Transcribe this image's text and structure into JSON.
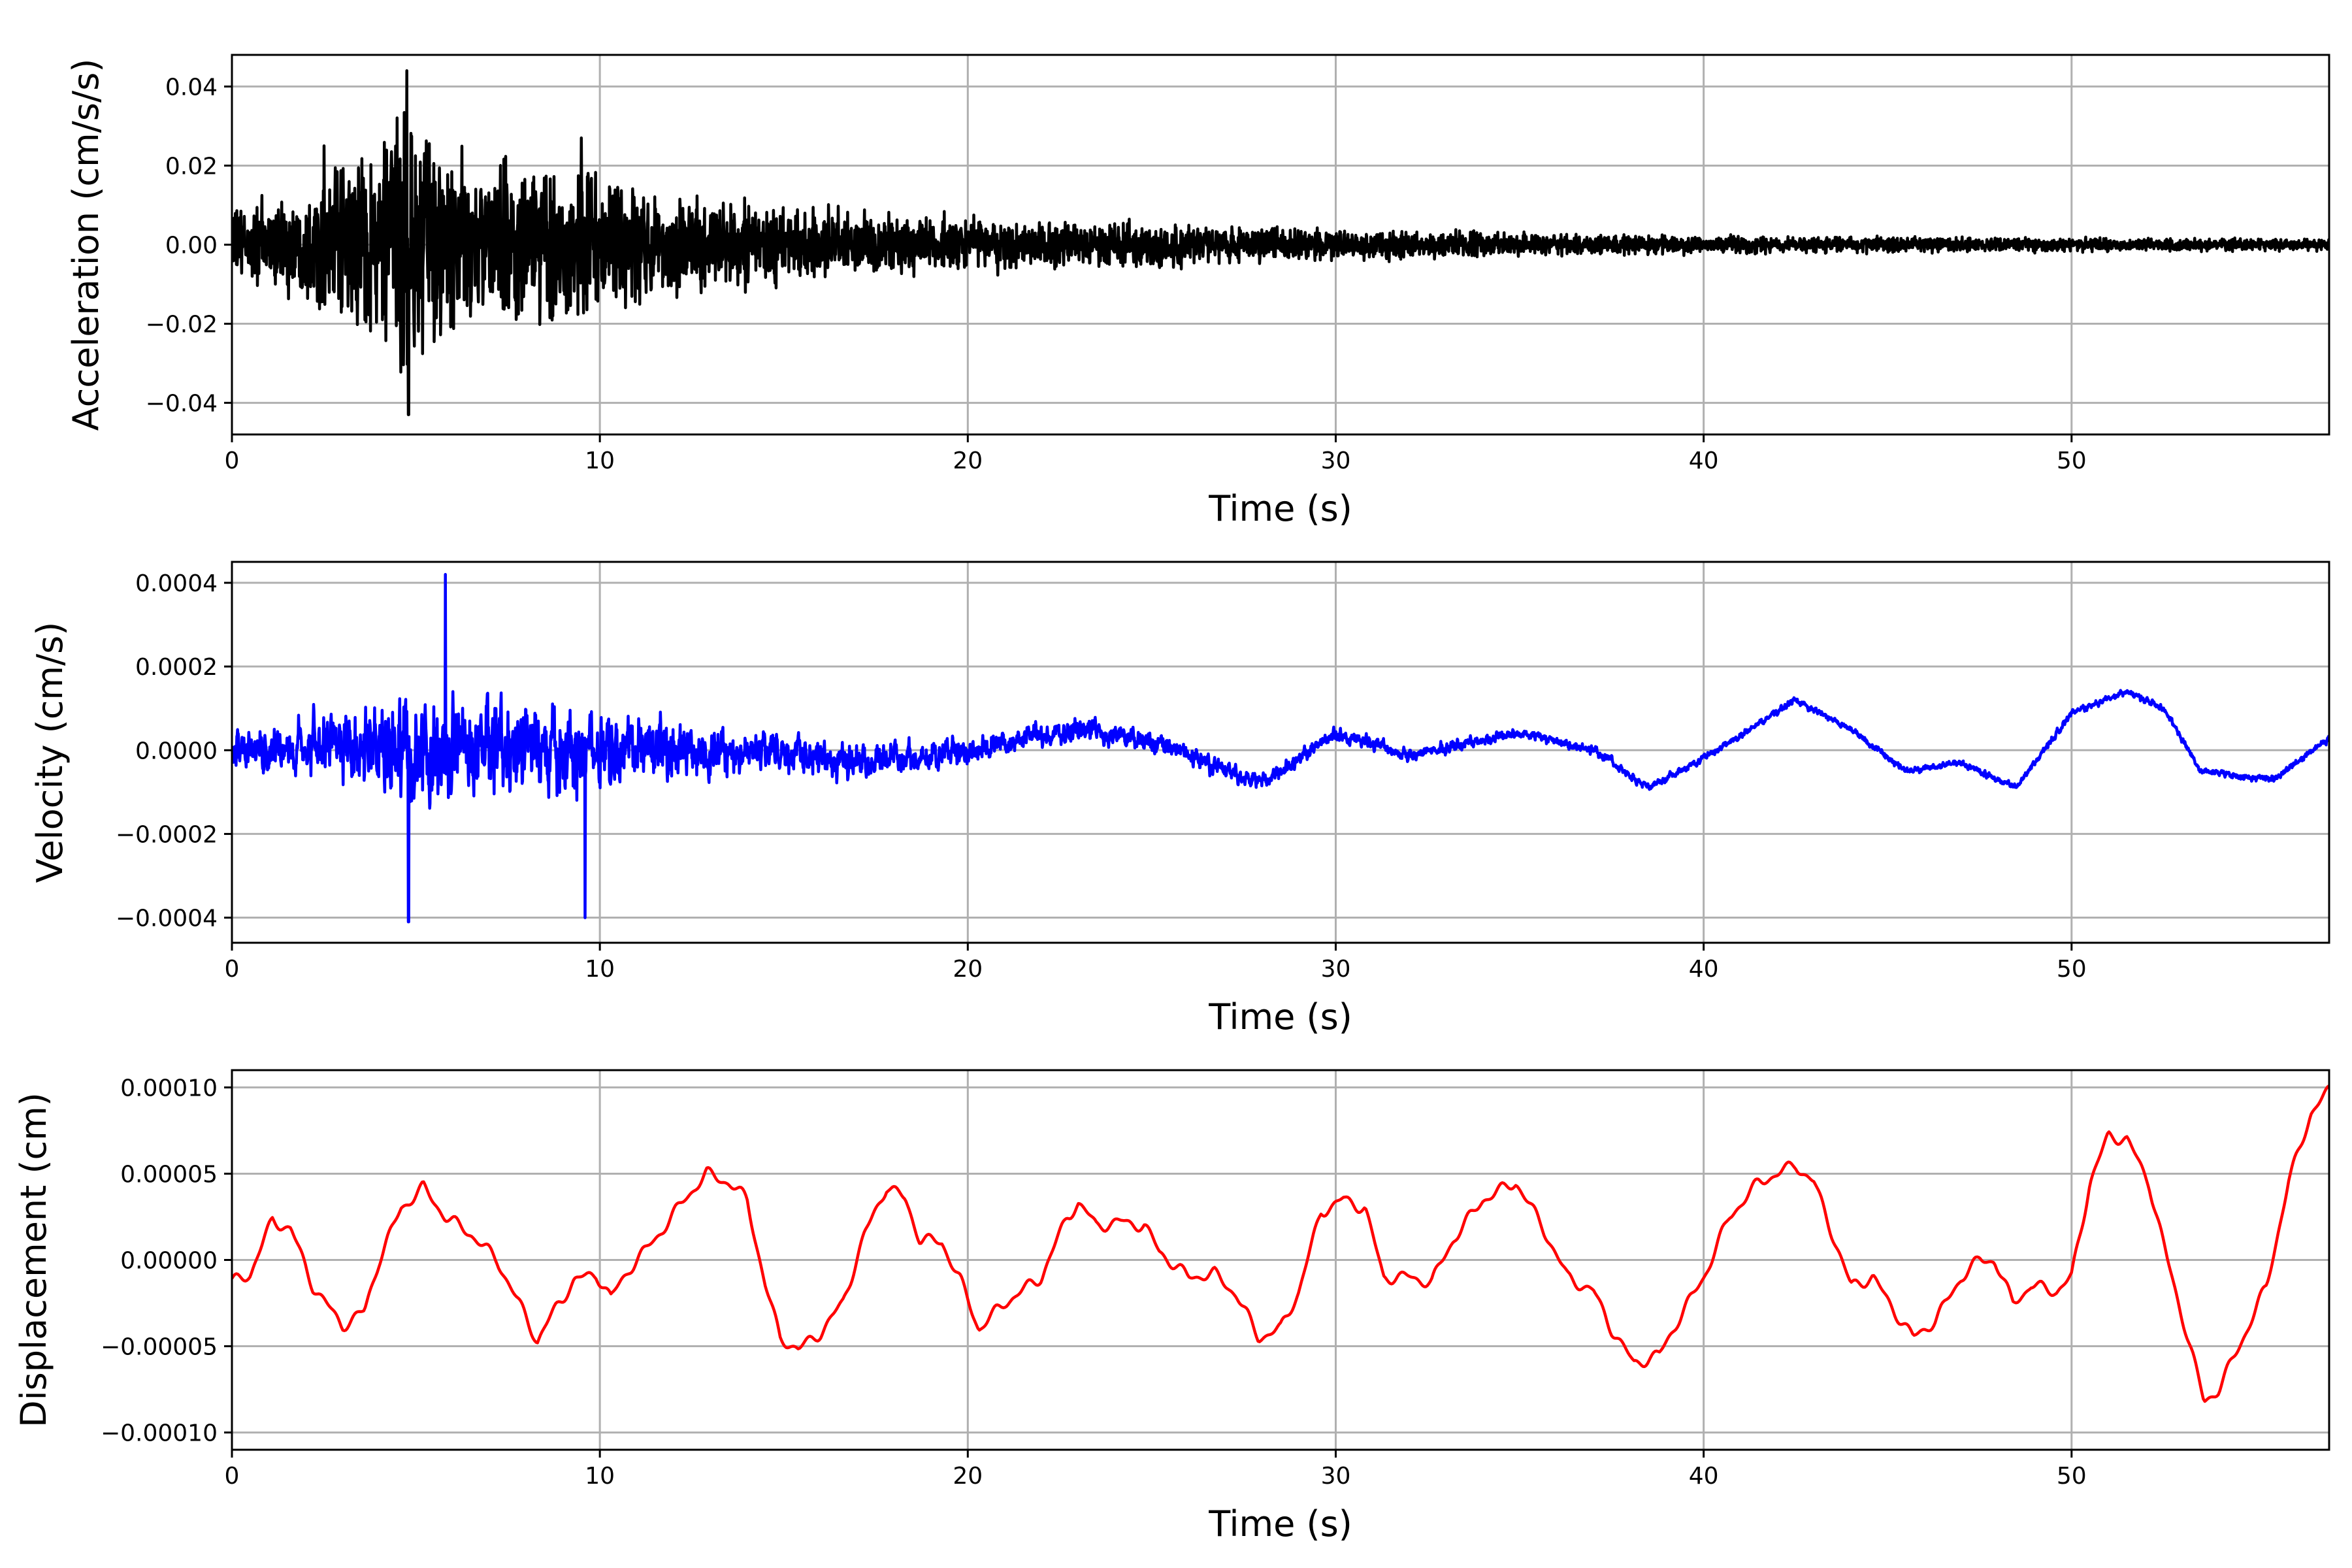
{
  "chart_data": [
    {
      "type": "line",
      "id": "acceleration",
      "xlabel": "Time (s)",
      "ylabel": "Acceleration (cm/s/s)",
      "xlim": [
        0,
        57
      ],
      "ylim": [
        -0.048,
        0.048
      ],
      "xticks": [
        0,
        10,
        20,
        30,
        40,
        50
      ],
      "xtick_labels": [
        "0",
        "10",
        "20",
        "30",
        "40",
        "50"
      ],
      "yticks": [
        -0.04,
        -0.02,
        0.0,
        0.02,
        0.04
      ],
      "ytick_labels": [
        "−0.04",
        "−0.02",
        "0.00",
        "0.02",
        "0.04"
      ],
      "grid": true,
      "series": [
        {
          "color": "#000000",
          "style": "noise",
          "envelope": [
            [
              0,
              0.012
            ],
            [
              2,
              0.018
            ],
            [
              3.5,
              0.03
            ],
            [
              4.7,
              0.044
            ],
            [
              6,
              0.032
            ],
            [
              8,
              0.025
            ],
            [
              9.5,
              0.028
            ],
            [
              11,
              0.02
            ],
            [
              13,
              0.015
            ],
            [
              16,
              0.012
            ],
            [
              20,
              0.009
            ],
            [
              25,
              0.007
            ],
            [
              30,
              0.005
            ],
            [
              40,
              0.003
            ],
            [
              50,
              0.0022
            ],
            [
              57,
              0.002
            ]
          ],
          "peaks": [
            [
              4.75,
              0.044
            ],
            [
              4.8,
              -0.043
            ],
            [
              9.5,
              0.027
            ],
            [
              2.5,
              0.025
            ]
          ]
        }
      ]
    },
    {
      "type": "line",
      "id": "velocity",
      "xlabel": "Time (s)",
      "ylabel": "Velocity (cm/s)",
      "xlim": [
        0,
        57
      ],
      "ylim": [
        -0.00046,
        0.00045
      ],
      "xticks": [
        0,
        10,
        20,
        30,
        40,
        50
      ],
      "xtick_labels": [
        "0",
        "10",
        "20",
        "30",
        "40",
        "50"
      ],
      "yticks": [
        -0.0004,
        -0.0002,
        0.0,
        0.0002,
        0.0004
      ],
      "ytick_labels": [
        "−0.0004",
        "−0.0002",
        "0.0000",
        "0.0002",
        "0.0004"
      ],
      "grid": true,
      "series": [
        {
          "color": "#0000ff",
          "style": "noise",
          "trend": [
            [
              0,
              0.0
            ],
            [
              5,
              0.0
            ],
            [
              10,
              0.0
            ],
            [
              14,
              0.0
            ],
            [
              17,
              -3e-05
            ],
            [
              20,
              0.0
            ],
            [
              23,
              5e-05
            ],
            [
              25,
              2e-05
            ],
            [
              28,
              -8e-05
            ],
            [
              30,
              4e-05
            ],
            [
              32,
              -1e-05
            ],
            [
              35,
              4e-05
            ],
            [
              37,
              0.0
            ],
            [
              38.5,
              -9e-05
            ],
            [
              40,
              -2e-05
            ],
            [
              42.5,
              0.00012
            ],
            [
              44,
              5e-05
            ],
            [
              45.5,
              -5e-05
            ],
            [
              47,
              -3e-05
            ],
            [
              48.5,
              -9e-05
            ],
            [
              50,
              9e-05
            ],
            [
              51.5,
              0.00014
            ],
            [
              52.5,
              0.0001
            ],
            [
              53.5,
              -5e-05
            ],
            [
              55.5,
              -7e-05
            ],
            [
              57,
              3e-05
            ]
          ],
          "envelope": [
            [
              0,
              0.00012
            ],
            [
              3,
              0.00018
            ],
            [
              4.8,
              0.00035
            ],
            [
              6,
              0.00028
            ],
            [
              9.5,
              0.00025
            ],
            [
              12,
              0.0002
            ],
            [
              14,
              0.00012
            ],
            [
              20,
              8e-05
            ],
            [
              30,
              4e-05
            ],
            [
              40,
              2e-05
            ],
            [
              57,
              2e-05
            ]
          ],
          "peaks": [
            [
              5.8,
              0.00042
            ],
            [
              4.8,
              -0.00041
            ],
            [
              9.6,
              -0.0004
            ]
          ]
        }
      ]
    },
    {
      "type": "line",
      "id": "displacement",
      "xlabel": "Time (s)",
      "ylabel": "Displacement (cm)",
      "xlim": [
        0,
        57
      ],
      "ylim": [
        -0.00011,
        0.00011
      ],
      "xticks": [
        0,
        10,
        20,
        30,
        40,
        50
      ],
      "xtick_labels": [
        "0",
        "10",
        "20",
        "30",
        "40",
        "50"
      ],
      "yticks": [
        -0.0001,
        -5e-05,
        0.0,
        5e-05,
        0.0001
      ],
      "ytick_labels": [
        "−0.00010",
        "−0.00005",
        "0.00000",
        "0.00005",
        "0.00010"
      ],
      "grid": true,
      "series": [
        {
          "color": "#ff0000",
          "style": "smooth",
          "points": [
            [
              0,
              -1.3e-05
            ],
            [
              0.5,
              -8e-06
            ],
            [
              1.1,
              2.3e-05
            ],
            [
              1.6,
              1.8e-05
            ],
            [
              2.2,
              -1.5e-05
            ],
            [
              3.0,
              -3.8e-05
            ],
            [
              3.6,
              -3e-05
            ],
            [
              4.0,
              0.0
            ],
            [
              4.6,
              3e-05
            ],
            [
              5.2,
              4.2e-05
            ],
            [
              5.8,
              2.5e-05
            ],
            [
              6.5,
              1.5e-05
            ],
            [
              7.2,
              0.0
            ],
            [
              7.8,
              -2.5e-05
            ],
            [
              8.3,
              -4.7e-05
            ],
            [
              8.8,
              -2.8e-05
            ],
            [
              9.3,
              -1.2e-05
            ],
            [
              9.9,
              -8e-06
            ],
            [
              10.3,
              -2.2e-05
            ],
            [
              10.8,
              -5e-06
            ],
            [
              11.5,
              1.2e-05
            ],
            [
              12.3,
              3.5e-05
            ],
            [
              12.9,
              5e-05
            ],
            [
              13.5,
              4.5e-05
            ],
            [
              14.0,
              3.5e-05
            ],
            [
              14.5,
              -1.5e-05
            ],
            [
              14.9,
              -4.5e-05
            ],
            [
              15.4,
              -5.2e-05
            ],
            [
              16.0,
              -4.2e-05
            ],
            [
              16.6,
              -2.5e-05
            ],
            [
              17.2,
              1.5e-05
            ],
            [
              17.8,
              4.3e-05
            ],
            [
              18.3,
              3.5e-05
            ],
            [
              18.7,
              1.2e-05
            ],
            [
              19.3,
              1e-05
            ],
            [
              19.8,
              -1.2e-05
            ],
            [
              20.3,
              -4e-05
            ],
            [
              21.0,
              -2.5e-05
            ],
            [
              22.0,
              -1e-05
            ],
            [
              22.7,
              2.5e-05
            ],
            [
              23.0,
              3.3e-05
            ],
            [
              23.5,
              2e-05
            ],
            [
              24.2,
              2.2e-05
            ],
            [
              24.8,
              2e-05
            ],
            [
              25.2,
              5e-06
            ],
            [
              26.0,
              -1e-05
            ],
            [
              26.7,
              -8e-06
            ],
            [
              27.3,
              -2e-05
            ],
            [
              27.9,
              -4.5e-05
            ],
            [
              28.5,
              -4e-05
            ],
            [
              29.0,
              -1.8e-05
            ],
            [
              29.6,
              2.8e-05
            ],
            [
              30.2,
              3.5e-05
            ],
            [
              30.8,
              3e-05
            ],
            [
              31.3,
              -1e-05
            ],
            [
              32.0,
              -1e-05
            ],
            [
              32.6,
              -1.3e-05
            ],
            [
              33.2,
              1.2e-05
            ],
            [
              34.0,
              3.5e-05
            ],
            [
              34.9,
              4.5e-05
            ],
            [
              35.6,
              2e-05
            ],
            [
              36.3,
              -1e-05
            ],
            [
              37.0,
              -1.8e-05
            ],
            [
              37.5,
              -4e-05
            ],
            [
              38.1,
              -6e-05
            ],
            [
              38.8,
              -5.5e-05
            ],
            [
              39.3,
              -3.5e-05
            ],
            [
              40.0,
              -1e-05
            ],
            [
              40.7,
              2.5e-05
            ],
            [
              41.5,
              4.5e-05
            ],
            [
              42.5,
              5.5e-05
            ],
            [
              43.0,
              4.5e-05
            ],
            [
              43.5,
              1.5e-05
            ],
            [
              44.0,
              -1.5e-05
            ],
            [
              44.6,
              -1e-05
            ],
            [
              45.2,
              -3e-05
            ],
            [
              45.7,
              -4.5e-05
            ],
            [
              46.3,
              -3.5e-05
            ],
            [
              47.0,
              -1e-05
            ],
            [
              47.5,
              0.0
            ],
            [
              47.9,
              0.0
            ],
            [
              48.4,
              -2.5e-05
            ],
            [
              48.9,
              -1.5e-05
            ],
            [
              49.6,
              -1.8e-05
            ],
            [
              50.0,
              -1e-05
            ],
            [
              50.5,
              4.5e-05
            ],
            [
              51.0,
              7.2e-05
            ],
            [
              51.5,
              7e-05
            ],
            [
              52.1,
              4.5e-05
            ],
            [
              52.6,
              0.0
            ],
            [
              53.1,
              -4e-05
            ],
            [
              53.6,
              -8.2e-05
            ],
            [
              54.0,
              -7.5e-05
            ],
            [
              54.6,
              -4.8e-05
            ],
            [
              55.3,
              -1.5e-05
            ],
            [
              55.9,
              4.5e-05
            ],
            [
              56.5,
              8.5e-05
            ],
            [
              57,
              9.8e-05
            ]
          ]
        }
      ]
    }
  ]
}
